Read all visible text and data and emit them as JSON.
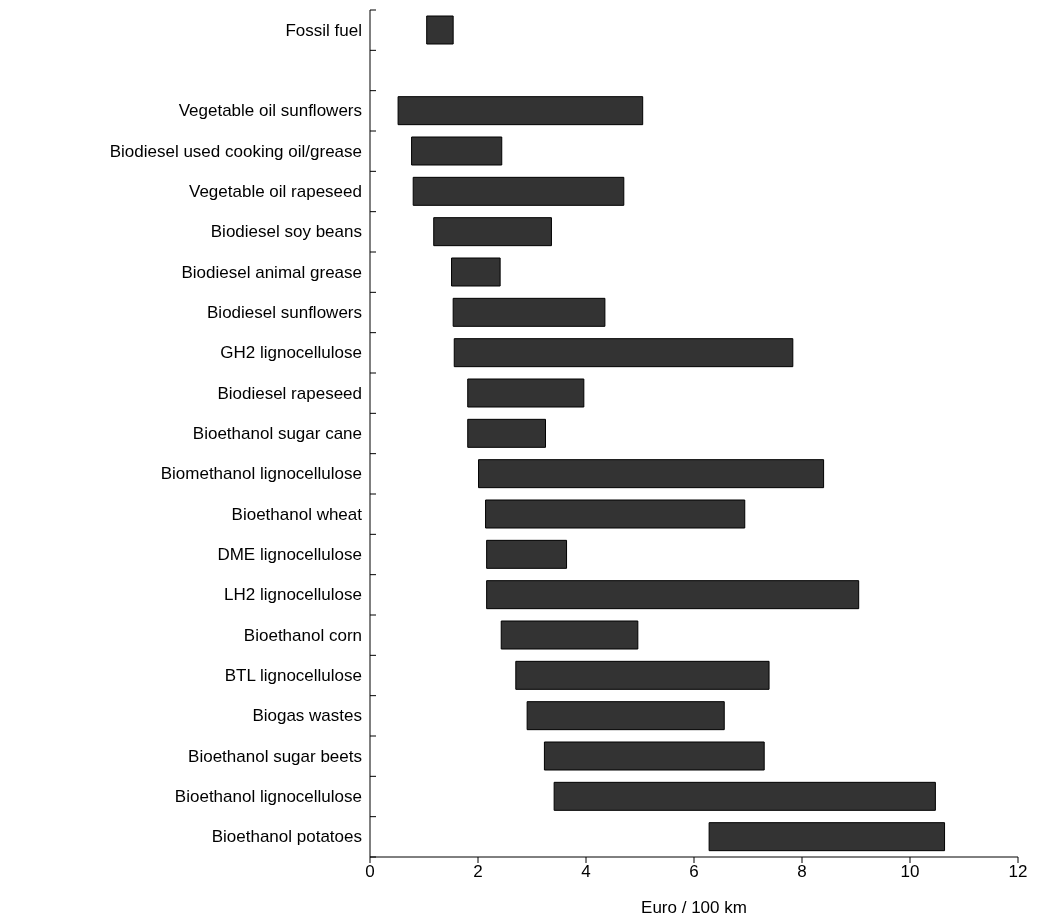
{
  "chart_data": {
    "type": "bar",
    "orientation": "horizontal",
    "xlabel": "Euro / 100 km",
    "categories": [
      "Fossil fuel",
      null,
      "Vegetable oil sunflowers",
      "Biodiesel used cooking oil/grease",
      "Vegetable oil rapeseed",
      "Biodiesel soy beans",
      "Biodiesel animal grease",
      "Biodiesel sunflowers",
      "GH2 lignocellulose",
      "Biodiesel rapeseed",
      "Bioethanol sugar cane",
      "Biomethanol lignocellulose",
      "Bioethanol wheat",
      "DME lignocellulose",
      "LH2 lignocellulose",
      "Bioethanol corn",
      "BTL lignocellulose",
      "Biogas wastes",
      "Bioethanol sugar beets",
      "Bioethanol lignocellulose",
      "Bioethanol potatoes"
    ],
    "base": [
      1.05,
      null,
      0.52,
      0.77,
      0.8,
      1.18,
      1.51,
      1.54,
      1.56,
      1.81,
      1.81,
      2.01,
      2.14,
      2.16,
      2.16,
      2.43,
      2.7,
      2.91,
      3.23,
      3.41,
      6.28
    ],
    "values": [
      0.49,
      null,
      4.53,
      1.67,
      3.9,
      2.18,
      0.9,
      2.81,
      6.27,
      2.15,
      1.44,
      6.39,
      4.8,
      1.48,
      6.89,
      2.53,
      4.69,
      3.65,
      4.07,
      7.06,
      4.36
    ],
    "color": "#333333",
    "xlim": [
      0,
      12
    ],
    "xticks": [
      0,
      2,
      4,
      6,
      8,
      10,
      12
    ]
  }
}
